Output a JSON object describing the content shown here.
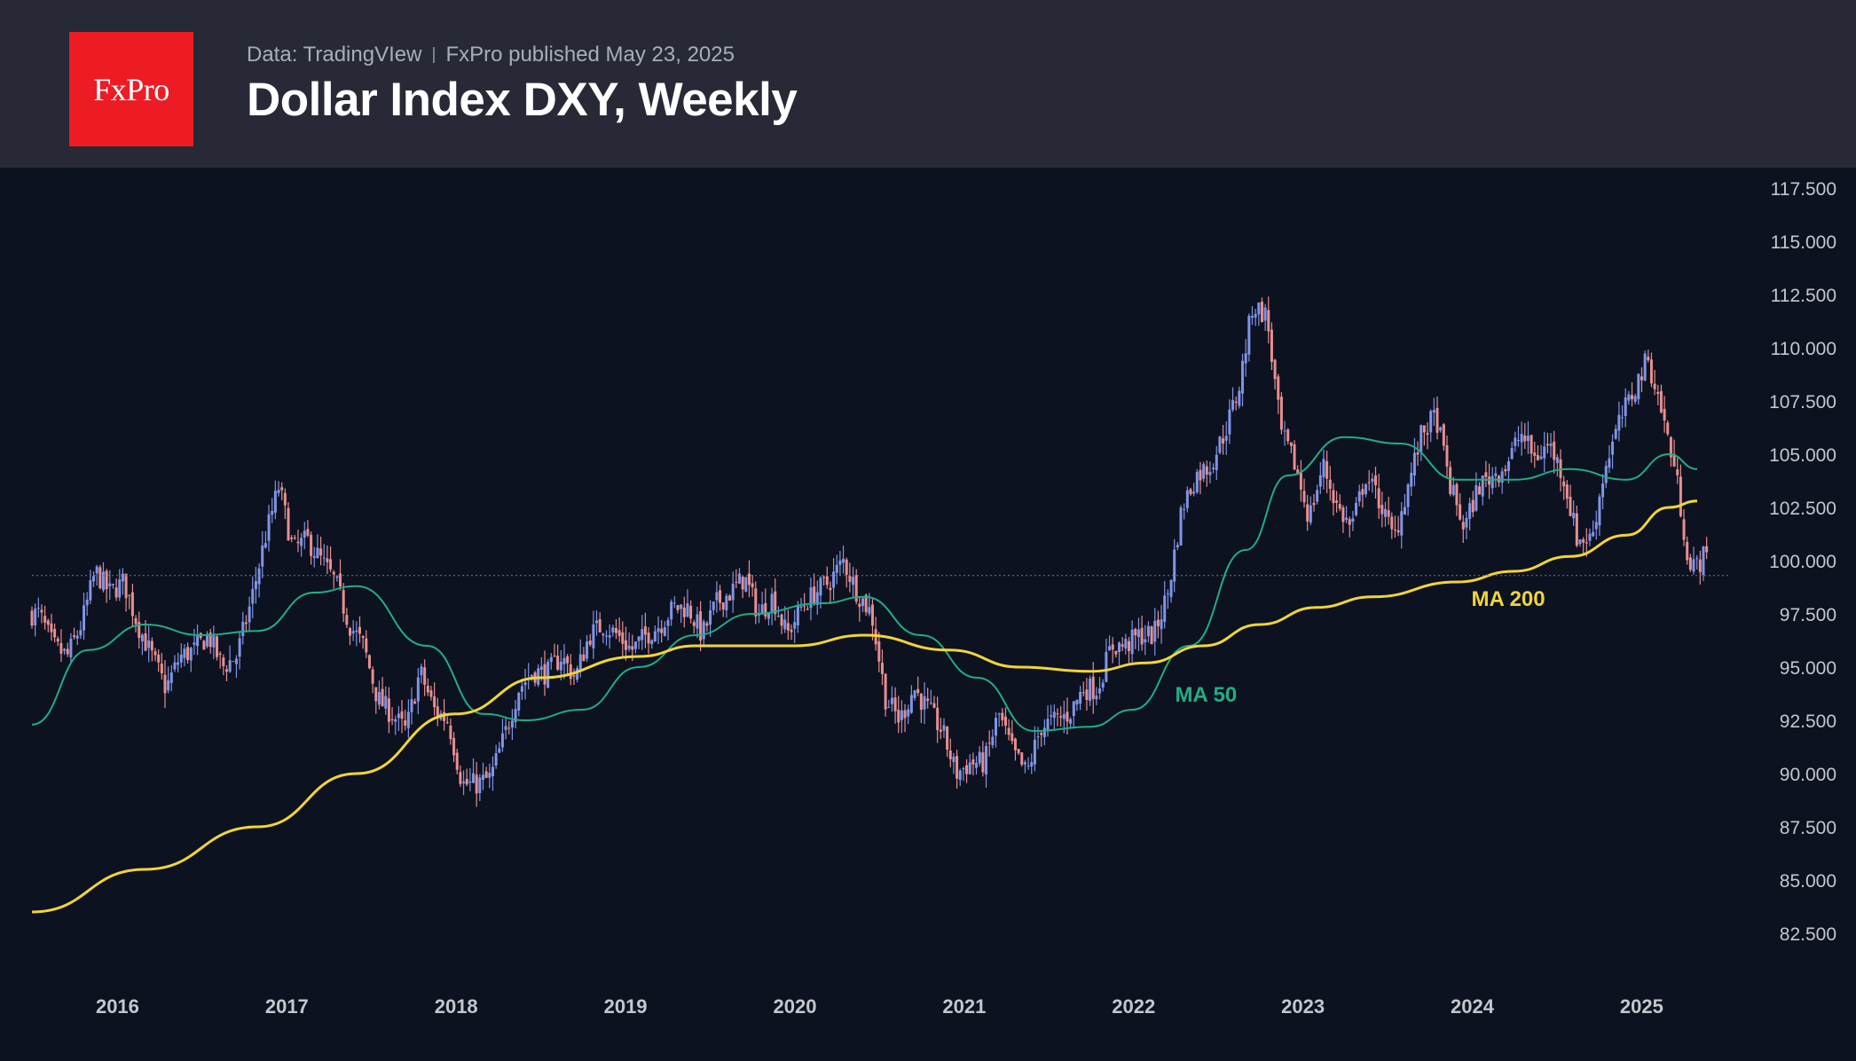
{
  "brand": {
    "logo_text": "FxPro",
    "logo_color": "#ed1c24"
  },
  "header": {
    "source": "Data: TradingVIew",
    "published": "FxPro published May 23, 2025",
    "title": "Dollar Index DXY, Weekly"
  },
  "colors": {
    "background": "#0d1220",
    "header_bg": "#272a36",
    "candle_up": "#7f95e6",
    "candle_down": "#e88f8f",
    "ma50": "#1fae84",
    "ma200": "#f0d538",
    "text": "#c4c7cf"
  },
  "chart_data": {
    "type": "candlestick",
    "title": "Dollar Index DXY, Weekly",
    "timeframe": "Weekly",
    "x_range": [
      "2015-07",
      "2025-05"
    ],
    "x_tick_labels": [
      "2016",
      "2017",
      "2018",
      "2019",
      "2020",
      "2021",
      "2022",
      "2023",
      "2024",
      "2025"
    ],
    "ylim": [
      81.5,
      118.0
    ],
    "y_ticks": [
      82.5,
      85.0,
      87.5,
      90.0,
      92.5,
      95.0,
      97.5,
      100.0,
      102.5,
      105.0,
      107.5,
      110.0,
      112.5,
      115.0,
      117.5
    ],
    "y_tick_labels": [
      "82.500",
      "85.000",
      "87.500",
      "90.000",
      "92.500",
      "95.000",
      "97.500",
      "100.000",
      "102.500",
      "105.000",
      "107.500",
      "110.000",
      "112.500",
      "115.000",
      "117.500"
    ],
    "price_anchors": [
      [
        "2015-07",
        97.5
      ],
      [
        "2015-08",
        96.0
      ],
      [
        "2015-09",
        95.5
      ],
      [
        "2015-10",
        97.0
      ],
      [
        "2015-11",
        99.5
      ],
      [
        "2015-12",
        98.5
      ],
      [
        "2016-01",
        99.0
      ],
      [
        "2016-02",
        97.0
      ],
      [
        "2016-03",
        95.5
      ],
      [
        "2016-04",
        94.0
      ],
      [
        "2016-05",
        95.5
      ],
      [
        "2016-06",
        95.8
      ],
      [
        "2016-07",
        96.5
      ],
      [
        "2016-08",
        95.0
      ],
      [
        "2016-09",
        95.5
      ],
      [
        "2016-10",
        98.0
      ],
      [
        "2016-11",
        101.0
      ],
      [
        "2016-12",
        103.5
      ],
      [
        "2017-01",
        100.5
      ],
      [
        "2017-02",
        101.0
      ],
      [
        "2017-03",
        100.0
      ],
      [
        "2017-04",
        99.0
      ],
      [
        "2017-05",
        97.0
      ],
      [
        "2017-06",
        96.0
      ],
      [
        "2017-07",
        93.5
      ],
      [
        "2017-08",
        92.8
      ],
      [
        "2017-09",
        92.0
      ],
      [
        "2017-10",
        94.8
      ],
      [
        "2017-11",
        93.0
      ],
      [
        "2017-12",
        92.5
      ],
      [
        "2018-01",
        89.5
      ],
      [
        "2018-02",
        89.5
      ],
      [
        "2018-03",
        89.8
      ],
      [
        "2018-04",
        91.8
      ],
      [
        "2018-05",
        94.0
      ],
      [
        "2018-06",
        94.8
      ],
      [
        "2018-07",
        94.7
      ],
      [
        "2018-08",
        95.5
      ],
      [
        "2018-09",
        94.5
      ],
      [
        "2018-10",
        96.5
      ],
      [
        "2018-11",
        97.0
      ],
      [
        "2018-12",
        96.5
      ],
      [
        "2019-01",
        95.8
      ],
      [
        "2019-02",
        96.5
      ],
      [
        "2019-03",
        97.0
      ],
      [
        "2019-04",
        97.8
      ],
      [
        "2019-05",
        97.8
      ],
      [
        "2019-06",
        96.5
      ],
      [
        "2019-07",
        98.0
      ],
      [
        "2019-08",
        98.5
      ],
      [
        "2019-09",
        99.2
      ],
      [
        "2019-10",
        97.5
      ],
      [
        "2019-11",
        98.3
      ],
      [
        "2019-12",
        96.5
      ],
      [
        "2020-01",
        97.8
      ],
      [
        "2020-02",
        98.5
      ],
      [
        "2020-03",
        99.0
      ],
      [
        "2020-04",
        100.0
      ],
      [
        "2020-05",
        98.5
      ],
      [
        "2020-06",
        97.5
      ],
      [
        "2020-07",
        93.5
      ],
      [
        "2020-08",
        92.5
      ],
      [
        "2020-09",
        94.0
      ],
      [
        "2020-10",
        93.0
      ],
      [
        "2020-11",
        92.0
      ],
      [
        "2020-12",
        90.0
      ],
      [
        "2021-01",
        90.5
      ],
      [
        "2021-02",
        90.5
      ],
      [
        "2021-03",
        92.8
      ],
      [
        "2021-04",
        91.0
      ],
      [
        "2021-05",
        90.0
      ],
      [
        "2021-06",
        92.2
      ],
      [
        "2021-07",
        92.5
      ],
      [
        "2021-08",
        92.8
      ],
      [
        "2021-09",
        94.0
      ],
      [
        "2021-10",
        94.0
      ],
      [
        "2021-11",
        96.0
      ],
      [
        "2021-12",
        96.0
      ],
      [
        "2022-01",
        96.5
      ],
      [
        "2022-02",
        96.5
      ],
      [
        "2022-03",
        98.5
      ],
      [
        "2022-04",
        102.5
      ],
      [
        "2022-05",
        104.0
      ],
      [
        "2022-06",
        104.5
      ],
      [
        "2022-07",
        106.0
      ],
      [
        "2022-08",
        108.0
      ],
      [
        "2022-09",
        112.0
      ],
      [
        "2022-10",
        111.5
      ],
      [
        "2022-11",
        106.0
      ],
      [
        "2022-12",
        104.5
      ],
      [
        "2023-01",
        102.0
      ],
      [
        "2023-02",
        104.5
      ],
      [
        "2023-03",
        102.5
      ],
      [
        "2023-04",
        101.5
      ],
      [
        "2023-05",
        104.0
      ],
      [
        "2023-06",
        102.8
      ],
      [
        "2023-07",
        101.0
      ],
      [
        "2023-08",
        103.5
      ],
      [
        "2023-09",
        106.0
      ],
      [
        "2023-10",
        106.8
      ],
      [
        "2023-11",
        103.5
      ],
      [
        "2023-12",
        101.5
      ],
      [
        "2024-01",
        103.5
      ],
      [
        "2024-02",
        104.0
      ],
      [
        "2024-03",
        104.5
      ],
      [
        "2024-04",
        106.0
      ],
      [
        "2024-05",
        104.8
      ],
      [
        "2024-06",
        105.5
      ],
      [
        "2024-07",
        104.0
      ],
      [
        "2024-08",
        101.0
      ],
      [
        "2024-09",
        101.0
      ],
      [
        "2024-10",
        104.5
      ],
      [
        "2024-11",
        106.5
      ],
      [
        "2024-12",
        108.0
      ],
      [
        "2025-01",
        109.5
      ],
      [
        "2025-02",
        107.0
      ],
      [
        "2025-03",
        104.0
      ],
      [
        "2025-04",
        99.5
      ],
      [
        "2025-05",
        100.2
      ]
    ],
    "last_price": 99.3,
    "series": [
      {
        "name": "MA 50",
        "color": "#1fae84",
        "points": [
          [
            "2015-07",
            92.3
          ],
          [
            "2015-11",
            95.8
          ],
          [
            "2016-03",
            97.0
          ],
          [
            "2016-07",
            96.5
          ],
          [
            "2016-11",
            96.7
          ],
          [
            "2017-03",
            98.5
          ],
          [
            "2017-06",
            98.8
          ],
          [
            "2017-11",
            96.0
          ],
          [
            "2018-03",
            92.8
          ],
          [
            "2018-06",
            92.5
          ],
          [
            "2018-10",
            93.0
          ],
          [
            "2019-02",
            95.0
          ],
          [
            "2019-06",
            96.5
          ],
          [
            "2019-10",
            97.5
          ],
          [
            "2020-03",
            98.0
          ],
          [
            "2020-06",
            98.3
          ],
          [
            "2020-10",
            96.5
          ],
          [
            "2021-02",
            94.5
          ],
          [
            "2021-06",
            92.0
          ],
          [
            "2021-10",
            92.2
          ],
          [
            "2022-01",
            93.0
          ],
          [
            "2022-05",
            96.0
          ],
          [
            "2022-09",
            100.5
          ],
          [
            "2022-12",
            104.0
          ],
          [
            "2023-04",
            105.8
          ],
          [
            "2023-08",
            105.5
          ],
          [
            "2023-12",
            103.8
          ],
          [
            "2024-04",
            103.8
          ],
          [
            "2024-08",
            104.3
          ],
          [
            "2024-12",
            103.8
          ],
          [
            "2025-03",
            105.0
          ],
          [
            "2025-05",
            104.3
          ]
        ]
      },
      {
        "name": "MA 200",
        "color": "#f0d538",
        "points": [
          [
            "2015-07",
            83.5
          ],
          [
            "2016-03",
            85.5
          ],
          [
            "2016-11",
            87.5
          ],
          [
            "2017-06",
            90.0
          ],
          [
            "2018-01",
            92.8
          ],
          [
            "2018-07",
            94.5
          ],
          [
            "2019-02",
            95.5
          ],
          [
            "2019-06",
            96.0
          ],
          [
            "2020-01",
            96.0
          ],
          [
            "2020-06",
            96.5
          ],
          [
            "2020-12",
            95.8
          ],
          [
            "2021-05",
            95.0
          ],
          [
            "2021-10",
            94.8
          ],
          [
            "2022-02",
            95.2
          ],
          [
            "2022-06",
            96.0
          ],
          [
            "2022-10",
            97.0
          ],
          [
            "2023-02",
            97.8
          ],
          [
            "2023-06",
            98.3
          ],
          [
            "2023-12",
            99.0
          ],
          [
            "2024-04",
            99.5
          ],
          [
            "2024-08",
            100.2
          ],
          [
            "2024-12",
            101.2
          ],
          [
            "2025-03",
            102.5
          ],
          [
            "2025-05",
            102.8
          ]
        ]
      }
    ],
    "annotations": [
      {
        "text": "MA 50",
        "color": "#1fae84",
        "x": "2022-04",
        "y": 93.7
      },
      {
        "text": "MA 200",
        "color": "#f0d538",
        "x": "2024-01",
        "y": 98.2
      }
    ],
    "grid": false,
    "y_axis_side": "right"
  }
}
